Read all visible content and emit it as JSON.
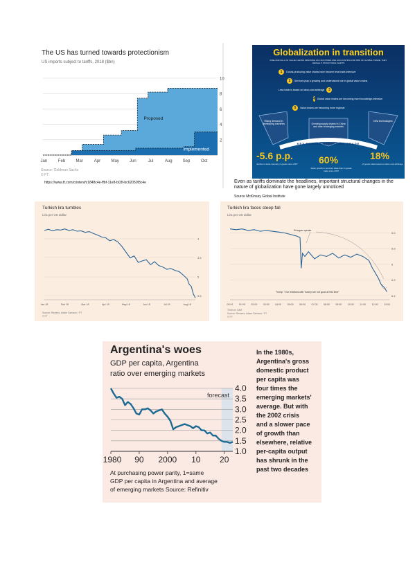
{
  "panel_us": {
    "title": "The US has turned towards protectionism",
    "subtitle": "US imports subject to tariffs, 2018 ($bn)",
    "label_proposed": "Proposed",
    "label_implemented": "Implemented",
    "source": "Source: Goldman Sachs",
    "credit": "© FT",
    "url": "https://www.ft.com/content/c1848c4e-ffbf-11e8-b03f-bc62050f3c4e",
    "colors": {
      "proposed": "#5aa9da",
      "implemented": "#1b6fb1",
      "frame": "#1a1a1a"
    }
  },
  "panel_glob": {
    "title": "Globalization in transition",
    "subtitle": "RISE AND FALL OF VALUE CHAINS SPANNING AS COUNTRIES AND ACCOUNTING FOR 88% OF GLOBAL TRADE, THEY REVEAL 5 STRUCTURAL SHIFTS",
    "shifts": [
      "Goods-producing value chains have become less trade-intensive",
      "Services play a growing and undervalued role in global value chains",
      "Less trade is based on labor-cost arbitrage",
      "Global value chains are becoming more knowledge-intensive",
      "Value chains are becoming more regional"
    ],
    "forces": [
      "Rising demand in developing countries",
      "Growing supply chains in China and other emerging markets",
      "New technologies"
    ],
    "banner": "KEY FORCES AFFECTING TRADE",
    "stats": [
      {
        "value": "-5.6 p.p.",
        "caption": "decline in trade intensity in goods since 2007"
      },
      {
        "value": "60%",
        "caption": "faster growth in services trade than in goods trade since 2007"
      },
      {
        "value": "18%",
        "caption": "of goods trade based on labor-cost arbitrage"
      }
    ],
    "caption": "Even as tariffs dominate the headlines, important structural changes in the nature of globalization have gone largely unnoticed",
    "source": "Source McKinsey  Global Institute",
    "colors": {
      "bg_top": "#0b2f63",
      "bg_bottom": "#0a5a96",
      "title": "#ffd21a",
      "stat": "#f7c51e"
    }
  },
  "panel_lira1": {
    "title": "Turkish lira tumbles",
    "subtitle": "Lira per US dollar",
    "source": "Source: Reuters, Adam Samson / FT",
    "credit": "© FT",
    "color": "#2a6496"
  },
  "panel_lira2": {
    "title": "Turkish lira faces steep fall",
    "subtitle": "Lira per US dollar",
    "annotation_1": "Erdogan speaks",
    "annotation_2": "Trump: \"Our relations with Turkey are not good at this time\"",
    "time_label": "Times in GMT",
    "source": "Source: Reuters, Adam Samson / FT",
    "credit": "© FT",
    "color": "#2a6496"
  },
  "panel_arg": {
    "title": "Argentina's woes",
    "subtitle_1": "GDP per capita, Argentina",
    "subtitle_2": "ratio over emerging markets",
    "forecast_label": "forecast",
    "note_1": "At purchasing power parity, 1=same",
    "note_2": "GDP per capita in Argentina and average",
    "note_3": "of emerging markets    Source: Refinitiv",
    "side_text": [
      "In the 1980s,",
      "Argentina's gross",
      "domestic product",
      "per capita was",
      "four times the",
      "emerging markets'",
      "average. But with",
      "the 2002 crisis",
      "and a slower pace",
      "of growth than",
      "elsewhere, relative",
      "per-capita output",
      "has shrunk in the",
      "past two decades"
    ],
    "colors": {
      "line": "#1d6b92",
      "forecast_bg": "#dde3ea"
    }
  },
  "chart_data": [
    {
      "type": "area",
      "title": "The US has turned towards protectionism",
      "subtitle": "US imports subject to tariffs, 2018 ($bn)",
      "categories": [
        "Jan",
        "Feb",
        "Mar",
        "Apr",
        "May",
        "Jun",
        "Jul",
        "Aug",
        "Sep",
        "Oct"
      ],
      "yticks": [
        2,
        4,
        6,
        8,
        10
      ],
      "ylim": [
        0,
        10
      ],
      "grid": true,
      "series": [
        {
          "name": "Implemented",
          "x": [
            0,
            1.6,
            1.6,
            5.2,
            5.2,
            7.9,
            7.9,
            8.5,
            8.5,
            9.8
          ],
          "values": [
            0.0,
            0.0,
            0.6,
            0.6,
            0.9,
            0.9,
            1.1,
            1.1,
            3.0,
            3.0
          ]
        },
        {
          "name": "Proposed",
          "x": [
            0,
            1.6,
            1.6,
            2.2,
            2.2,
            3.4,
            3.4,
            4.4,
            4.4,
            5.3,
            5.3,
            5.9,
            5.9,
            7.0,
            7.0,
            9.8
          ],
          "values": [
            0.0,
            0.0,
            0.3,
            0.3,
            1.4,
            1.4,
            2.6,
            2.6,
            3.2,
            3.2,
            7.4,
            7.4,
            8.2,
            8.2,
            8.7,
            8.7
          ]
        }
      ]
    },
    {
      "type": "line",
      "title": "Turkish lira tumbles",
      "subtitle": "Lira per US dollar",
      "categories": [
        "Jan 18",
        "Feb 18",
        "Mar 18",
        "Apr 18",
        "May 18",
        "Jun 18",
        "Jul 18",
        "Aug 18"
      ],
      "yticks": [
        4,
        4.5,
        5,
        5.5
      ],
      "ylim": [
        3.6,
        5.6
      ],
      "y_inverted": true,
      "x": [
        0,
        0.2,
        0.4,
        0.6,
        0.8,
        1.0,
        1.2,
        1.4,
        1.6,
        1.8,
        2.0,
        2.2,
        2.4,
        2.6,
        2.8,
        3.0,
        3.2,
        3.4,
        3.6,
        3.8,
        4.0,
        4.2,
        4.4,
        4.6,
        4.8,
        5.0,
        5.2,
        5.4,
        5.6,
        5.8,
        6.0,
        6.2,
        6.4,
        6.6,
        6.8,
        7.0,
        7.1,
        7.2,
        7.3,
        7.4
      ],
      "values": [
        3.78,
        3.75,
        3.79,
        3.76,
        3.77,
        3.74,
        3.78,
        3.76,
        3.8,
        3.79,
        3.83,
        3.81,
        3.86,
        3.9,
        3.95,
        3.97,
        4.05,
        4.02,
        4.08,
        4.2,
        4.35,
        4.5,
        4.45,
        4.62,
        4.58,
        4.55,
        4.68,
        4.6,
        4.7,
        4.74,
        4.8,
        4.78,
        4.83,
        4.86,
        4.95,
        5.05,
        5.2,
        5.25,
        5.45,
        5.55
      ]
    },
    {
      "type": "line",
      "title": "Turkish lira faces steep fall",
      "subtitle": "Lira per US dollar",
      "categories": [
        "00:01",
        "01:00",
        "02:00",
        "03:00",
        "04:00",
        "05:00",
        "06:00",
        "07:00",
        "08:00",
        "09:00",
        "10:00",
        "11:00",
        "12:00",
        "13:00"
      ],
      "yticks": [
        5.6,
        5.8,
        6,
        6.2,
        6.4
      ],
      "ylim": [
        5.5,
        6.45
      ],
      "y_inverted": true,
      "x": [
        0,
        0.5,
        1,
        1.5,
        2,
        2.5,
        3,
        3.5,
        4,
        4.5,
        5,
        5.5,
        5.8,
        5.9,
        6.0,
        6.2,
        6.5,
        7,
        7.5,
        8,
        8.5,
        9,
        9.5,
        10,
        10.5,
        11,
        11.5,
        11.8,
        12,
        12.3,
        12.5,
        12.8,
        13
      ],
      "values": [
        5.55,
        5.56,
        5.55,
        5.57,
        5.56,
        5.58,
        5.57,
        5.58,
        5.59,
        5.6,
        5.62,
        5.64,
        5.66,
        6.05,
        5.86,
        5.9,
        5.84,
        5.93,
        5.88,
        5.9,
        5.86,
        5.92,
        5.88,
        5.91,
        5.87,
        5.9,
        5.95,
        6.05,
        6.1,
        6.18,
        6.25,
        6.3,
        6.35
      ]
    },
    {
      "type": "line",
      "title": "Argentina's woes",
      "subtitle": "GDP per capita, Argentina ratio over emerging markets",
      "xticks": [
        1980,
        1990,
        2000,
        2010,
        2020
      ],
      "xtick_labels": [
        "1980",
        "90",
        "2000",
        "10",
        "20"
      ],
      "yticks": [
        1.0,
        1.5,
        2.0,
        2.5,
        3.0,
        3.5,
        4.0
      ],
      "ytick_labels": [
        "1.0",
        "1.5",
        "2.0",
        "2.5",
        "3.0",
        "3.5",
        "4.0"
      ],
      "ylim": [
        1.0,
        4.0
      ],
      "xlim": [
        1980,
        2023
      ],
      "forecast_from": 2019,
      "x": [
        1980,
        1981,
        1982,
        1983,
        1984,
        1985,
        1986,
        1987,
        1988,
        1989,
        1990,
        1991,
        1992,
        1993,
        1994,
        1995,
        1996,
        1997,
        1998,
        1999,
        2000,
        2001,
        2002,
        2003,
        2004,
        2005,
        2006,
        2007,
        2008,
        2009,
        2010,
        2011,
        2012,
        2013,
        2014,
        2015,
        2016,
        2017,
        2018,
        2019,
        2020,
        2021,
        2022,
        2023
      ],
      "values": [
        4.0,
        3.75,
        3.55,
        3.6,
        3.5,
        3.2,
        3.35,
        3.25,
        3.05,
        2.8,
        2.75,
        3.0,
        3.0,
        3.05,
        2.95,
        2.8,
        2.9,
        2.95,
        3.0,
        2.8,
        2.65,
        2.45,
        2.05,
        2.15,
        2.2,
        2.25,
        2.3,
        2.25,
        2.2,
        2.1,
        2.2,
        2.15,
        2.0,
        2.0,
        1.85,
        1.9,
        1.75,
        1.75,
        1.6,
        1.5,
        1.45,
        1.45,
        1.4,
        1.45
      ]
    }
  ]
}
